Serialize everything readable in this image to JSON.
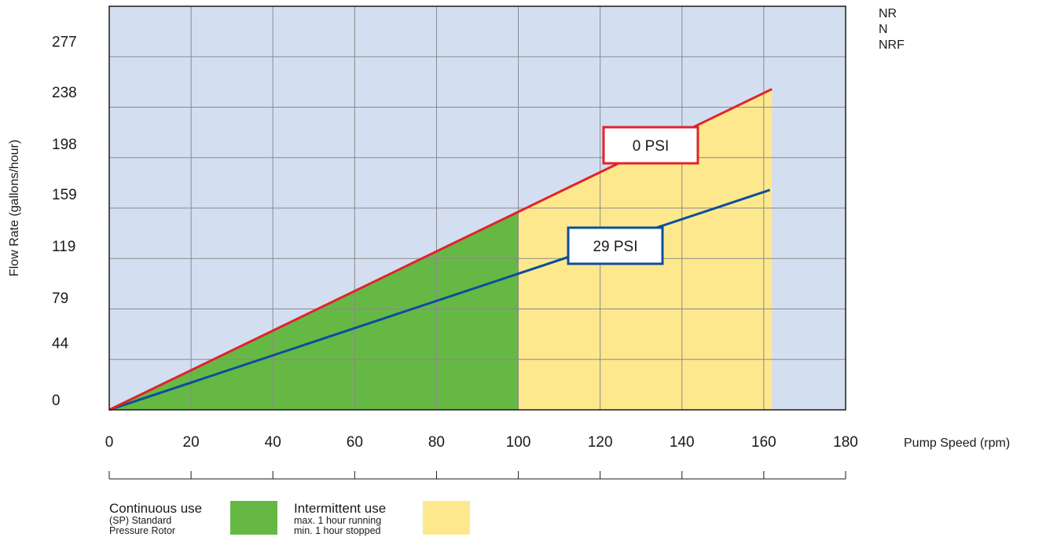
{
  "chart_data": {
    "type": "area",
    "xlabel": "Pump Speed (rpm)",
    "ylabel": "Flow Rate (gallons/hour)",
    "x_ticks": [
      0,
      20,
      40,
      60,
      80,
      100,
      120,
      140,
      160,
      180
    ],
    "y_ticks": [
      0,
      44,
      79,
      119,
      159,
      198,
      238,
      277
    ],
    "xlim": [
      0,
      180
    ],
    "ylim": [
      0,
      312
    ],
    "grid": true,
    "series": [
      {
        "name": "0 PSI",
        "x": [
          0,
          162
        ],
        "y": [
          0,
          248
        ],
        "color": "#e2232b"
      },
      {
        "name": "29 PSI",
        "x": [
          0,
          161.5
        ],
        "y": [
          0,
          170
        ],
        "color": "#0b4f99"
      }
    ],
    "regions": [
      {
        "name": "Continuous use",
        "x_range": [
          0,
          100
        ],
        "color": "#66b845"
      },
      {
        "name": "Intermittent use",
        "x_range": [
          100,
          162
        ],
        "color": "#fee88e"
      }
    ],
    "background_color": "#d3dff1"
  },
  "models": [
    "NR",
    "N",
    "NRF"
  ],
  "legend": {
    "continuous": {
      "title": "Continuous use",
      "line1": "(SP) Standard",
      "line2": "Pressure Rotor",
      "color": "#66b845"
    },
    "intermittent": {
      "title": "Intermittent use",
      "line1": "max. 1 hour running",
      "line2": "min. 1 hour stopped",
      "color": "#fee88e"
    }
  }
}
